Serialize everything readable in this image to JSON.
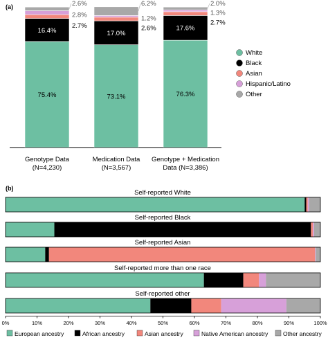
{
  "panel_a_label": "(a)",
  "panel_b_label": "(b)",
  "colors": {
    "white": "#6DBFA2",
    "black": "#000000",
    "asian": "#F2877C",
    "hispanic": "#D7A0D9",
    "other": "#A8A8A8",
    "european": "#6DBFA2",
    "african": "#000000",
    "asian_anc": "#F2877C",
    "native": "#D7A0D9",
    "other_anc": "#A8A8A8"
  },
  "chart_data": [
    {
      "type": "bar",
      "stacked": true,
      "categories": [
        "Genotype Data\n(N=4,230)",
        "Medication Data\n(N=3,567)",
        "Genotype + Medication\nData (N=3,386)"
      ],
      "series": [
        {
          "name": "White",
          "values": [
            75.4,
            73.1,
            76.3
          ]
        },
        {
          "name": "Black",
          "values": [
            16.4,
            17.0,
            17.6
          ]
        },
        {
          "name": "Asian",
          "values": [
            2.7,
            2.6,
            2.7
          ]
        },
        {
          "name": "Hispanic/Latino",
          "values": [
            2.8,
            1.2,
            1.3
          ]
        },
        {
          "name": "Other",
          "values": [
            2.6,
            6.2,
            2.0
          ]
        }
      ],
      "bar_labels": {
        "White": [
          "75.4%",
          "73.1%",
          "76.3%"
        ],
        "Black": [
          "16.4%",
          "17.0%",
          "17.6%"
        ],
        "Asian": [
          "2.7%",
          "2.6%",
          "2.7%"
        ],
        "Hispanic/Latino": [
          "2.8%",
          "1.2%",
          "1.3%"
        ],
        "Other": [
          "2.6%",
          "6.2%",
          "2.0%"
        ]
      },
      "ylim": [
        0,
        100
      ],
      "legend_position": "right"
    },
    {
      "type": "bar",
      "orientation": "horizontal",
      "stacked": true,
      "categories": [
        "Self-reported White",
        "Self-reported Black",
        "Self-reported Asian",
        "Self-reported more than one race",
        "Self-reported other"
      ],
      "series": [
        {
          "name": "European ancestry",
          "values": [
            95,
            15.5,
            12.6,
            63,
            46
          ]
        },
        {
          "name": "African ancestry",
          "values": [
            0.5,
            81.5,
            1.2,
            12.5,
            13
          ]
        },
        {
          "name": "Asian ancestry",
          "values": [
            0.5,
            0.6,
            84.5,
            5,
            9.5
          ]
        },
        {
          "name": "Native American ancestry",
          "values": [
            0.4,
            0.4,
            0.2,
            2.2,
            20.7
          ]
        },
        {
          "name": "Other ancestry",
          "values": [
            3.6,
            2.0,
            1.5,
            17.3,
            10.8
          ]
        }
      ],
      "xticks": [
        "0%",
        "10%",
        "20%",
        "30%",
        "40%",
        "50%",
        "60%",
        "70%",
        "80%",
        "90%",
        "100%"
      ],
      "xlim": [
        0,
        100
      ],
      "legend_position": "bottom"
    }
  ]
}
